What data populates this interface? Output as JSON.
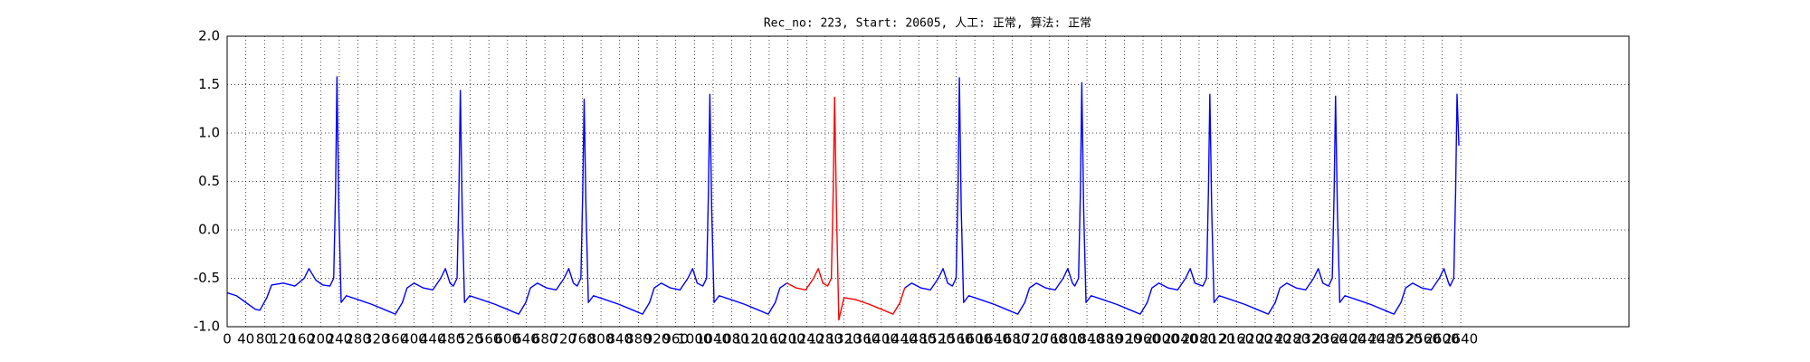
{
  "chart_data": {
    "type": "line",
    "title": "Rec_no: 223, Start: 20605, 人工: 正常, 算法: 正常",
    "xlim": [
      0,
      3000
    ],
    "ylim": [
      -1,
      2
    ],
    "xticks": [
      0,
      40,
      80,
      120,
      160,
      200,
      240,
      280,
      320,
      360,
      400,
      440,
      480,
      520,
      560,
      600,
      640,
      680,
      720,
      760,
      800,
      840,
      880,
      920,
      960,
      1000,
      1040,
      1080,
      1120,
      1160,
      1200,
      1240,
      1280,
      1320,
      1360,
      1400,
      1440,
      1480,
      1520,
      1560,
      1600,
      1640,
      1680,
      1720,
      1760,
      1800,
      1840,
      1880,
      1920,
      1960,
      2000,
      2040,
      2080,
      2120,
      2160,
      2200,
      2240,
      2280,
      2320,
      2360,
      2400,
      2440,
      2480,
      2520,
      2560,
      2600,
      2640
    ],
    "yticks": [
      {
        "value": -1,
        "label": "-1.0"
      },
      -0.5,
      {
        "value": 0,
        "label": "0.0"
      },
      0.5,
      {
        "value": 1,
        "label": "1.0"
      },
      1.5,
      {
        "value": 2,
        "label": "2.0"
      }
    ],
    "grid": true,
    "series": [
      {
        "color": "#0000ff",
        "x": [
          0,
          20,
          40,
          60,
          70,
          85,
          95,
          120,
          145,
          165,
          175,
          190,
          205,
          220,
          228,
          232,
          235,
          239,
          244,
          255,
          280,
          310,
          340,
          360,
          375,
          385,
          400,
          420,
          440,
          457,
          467,
          477,
          484,
          492,
          496,
          499,
          503,
          508,
          519,
          544,
          574,
          604,
          624,
          639,
          649,
          664,
          684,
          704,
          721,
          731,
          741,
          749,
          757,
          761,
          764,
          768,
          773,
          784,
          809,
          839,
          869,
          889,
          904,
          914,
          929,
          949,
          969,
          986,
          996,
          1006,
          1018,
          1026,
          1030,
          1033,
          1037,
          1042,
          1053,
          1078,
          1108,
          1138,
          1158,
          1173,
          1183,
          1198,
          1218,
          1238,
          1255,
          1265,
          1275,
          1285,
          1293,
          1297,
          1300,
          1304,
          1309,
          1320,
          1345,
          1375,
          1405,
          1425,
          1440,
          1450,
          1465,
          1485,
          1505,
          1522,
          1532,
          1542,
          1552,
          1560,
          1564,
          1567,
          1571,
          1576,
          1587,
          1612,
          1642,
          1672,
          1692,
          1707,
          1717,
          1732,
          1752,
          1772,
          1789,
          1799,
          1809,
          1814,
          1822,
          1826,
          1829,
          1833,
          1838,
          1849,
          1874,
          1904,
          1934,
          1954,
          1969,
          1979,
          1994,
          2014,
          2034,
          2051,
          2061,
          2071,
          2088,
          2096,
          2100,
          2103,
          2107,
          2112,
          2123,
          2148,
          2178,
          2208,
          2228,
          2243,
          2253,
          2268,
          2288,
          2308,
          2325,
          2335,
          2345,
          2357,
          2365,
          2369,
          2372,
          2376,
          2381,
          2392,
          2417,
          2447,
          2477,
          2497,
          2512,
          2522,
          2537,
          2557,
          2577,
          2594,
          2604,
          2614,
          2617,
          2625,
          2629,
          2632,
          2636
        ],
        "values": [
          -0.65,
          -0.68,
          -0.75,
          -0.82,
          -0.83,
          -0.7,
          -0.57,
          -0.55,
          -0.58,
          -0.5,
          -0.4,
          -0.52,
          -0.57,
          -0.58,
          -0.5,
          0.4,
          1.58,
          0.2,
          -0.75,
          -0.68,
          -0.72,
          -0.77,
          -0.83,
          -0.87,
          -0.75,
          -0.6,
          -0.55,
          -0.6,
          -0.62,
          -0.5,
          -0.4,
          -0.55,
          -0.58,
          -0.5,
          0.4,
          1.44,
          0.2,
          -0.75,
          -0.68,
          -0.72,
          -0.77,
          -0.83,
          -0.87,
          -0.75,
          -0.6,
          -0.55,
          -0.6,
          -0.62,
          -0.5,
          -0.4,
          -0.55,
          -0.58,
          -0.5,
          0.4,
          1.35,
          0.2,
          -0.75,
          -0.68,
          -0.72,
          -0.77,
          -0.83,
          -0.87,
          -0.75,
          -0.6,
          -0.55,
          -0.6,
          -0.62,
          -0.5,
          -0.4,
          -0.55,
          -0.58,
          -0.5,
          0.4,
          1.4,
          0.2,
          -0.75,
          -0.68,
          -0.72,
          -0.77,
          -0.83,
          -0.87,
          -0.75,
          -0.6,
          -0.55,
          null,
          null,
          null,
          null,
          null,
          null,
          null,
          null,
          null,
          null,
          null,
          null,
          null,
          null,
          null,
          null,
          null,
          -0.6,
          -0.55,
          -0.6,
          -0.62,
          -0.5,
          -0.4,
          -0.55,
          -0.58,
          -0.5,
          0.4,
          1.57,
          0.2,
          -0.75,
          -0.68,
          -0.72,
          -0.77,
          -0.83,
          -0.87,
          -0.75,
          -0.6,
          -0.55,
          -0.6,
          -0.62,
          -0.5,
          -0.4,
          -0.55,
          -0.58,
          -0.5,
          0.4,
          1.52,
          0.2,
          -0.75,
          -0.68,
          -0.72,
          -0.77,
          -0.83,
          -0.87,
          -0.75,
          -0.6,
          -0.55,
          -0.6,
          -0.62,
          -0.5,
          -0.4,
          -0.55,
          -0.58,
          -0.5,
          0.4,
          1.4,
          0.2,
          -0.75,
          -0.68,
          -0.72,
          -0.77,
          -0.83,
          -0.87,
          -0.75,
          -0.6,
          -0.55,
          -0.6,
          -0.62,
          -0.5,
          -0.4,
          -0.55,
          -0.58,
          -0.5,
          0.4,
          1.38,
          0.2,
          -0.75,
          -0.68,
          -0.72,
          -0.77,
          -0.83,
          -0.87,
          -0.75,
          -0.6,
          -0.55,
          -0.6,
          -0.62,
          -0.5,
          -0.4,
          -0.55,
          -0.58,
          -0.5,
          0.4,
          1.4,
          0.87
        ]
      },
      {
        "color": "#ff0000",
        "x": [
          1198,
          1218,
          1238,
          1255,
          1265,
          1275,
          1285,
          1293,
          1297,
          1300,
          1304,
          1309,
          1320,
          1345,
          1375,
          1405,
          1425,
          1440,
          1450
        ],
        "values": [
          -0.55,
          -0.6,
          -0.62,
          -0.5,
          -0.4,
          -0.55,
          -0.58,
          -0.5,
          0.4,
          1.37,
          0.2,
          -0.93,
          -0.7,
          -0.72,
          -0.77,
          -0.83,
          -0.87,
          -0.75,
          -0.6
        ]
      }
    ]
  }
}
